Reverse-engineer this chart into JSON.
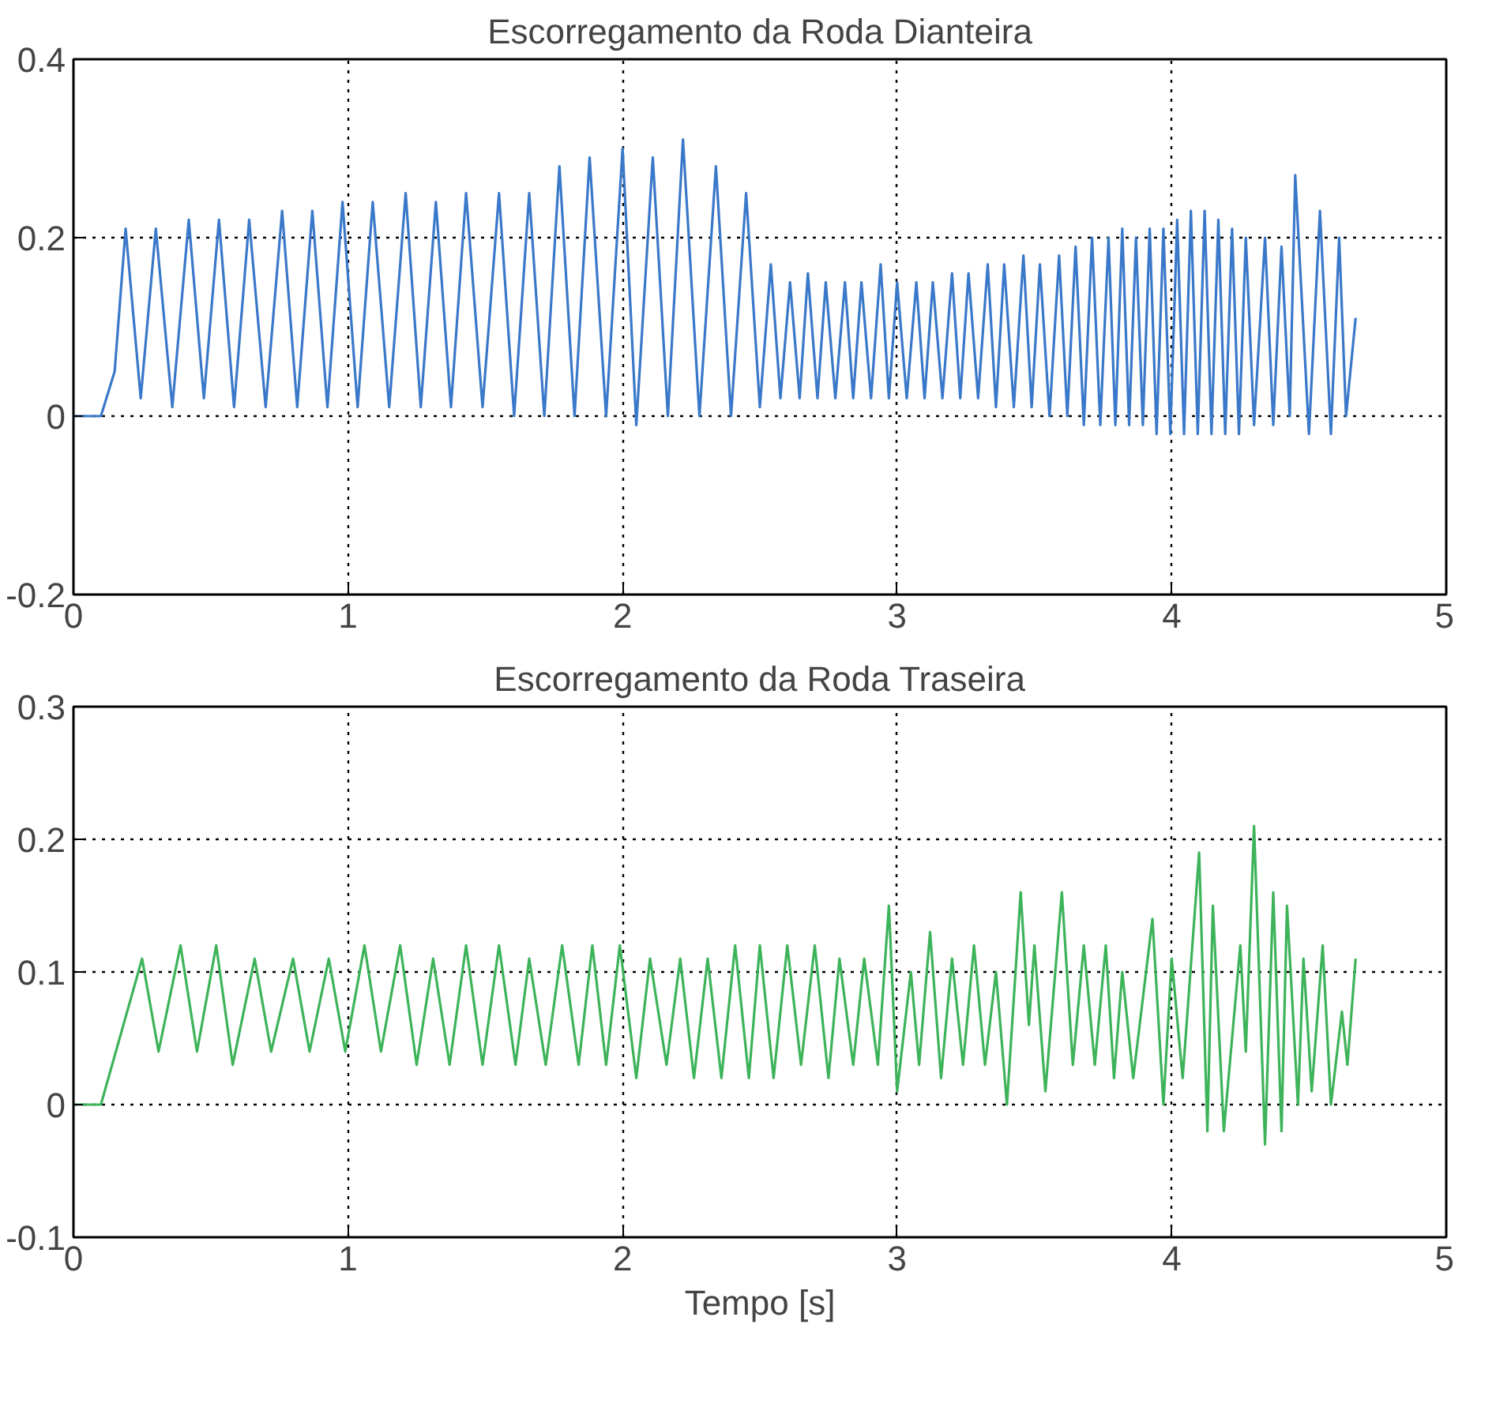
{
  "chart_data": [
    {
      "type": "line",
      "title": "Escorregamento da Roda Dianteira",
      "xlim": [
        0,
        5
      ],
      "xticks": [
        0,
        1,
        2,
        3,
        4,
        5
      ],
      "ylim": [
        -0.2,
        0.4
      ],
      "yticks": [
        -0.2,
        0,
        0.2,
        0.4
      ],
      "grid": true,
      "line_style": "solid",
      "series": [
        {
          "color": "#3a78c9",
          "x": [
            0,
            0.1,
            0.15,
            0.19,
            0.245,
            0.3,
            0.36,
            0.42,
            0.475,
            0.53,
            0.585,
            0.64,
            0.7,
            0.76,
            0.815,
            0.87,
            0.925,
            0.98,
            1.035,
            1.09,
            1.15,
            1.21,
            1.265,
            1.32,
            1.375,
            1.43,
            1.49,
            1.55,
            1.605,
            1.66,
            1.715,
            1.77,
            1.825,
            1.88,
            1.94,
            2.0,
            2.05,
            2.11,
            2.165,
            2.22,
            2.28,
            2.34,
            2.395,
            2.45,
            2.5,
            2.54,
            2.575,
            2.61,
            2.645,
            2.675,
            2.71,
            2.74,
            2.775,
            2.81,
            2.84,
            2.87,
            2.905,
            2.94,
            2.97,
            3.0,
            3.035,
            3.07,
            3.1,
            3.13,
            3.165,
            3.2,
            3.23,
            3.26,
            3.295,
            3.33,
            3.36,
            3.39,
            3.425,
            3.46,
            3.49,
            3.52,
            3.555,
            3.59,
            3.62,
            3.65,
            3.68,
            3.71,
            3.74,
            3.77,
            3.795,
            3.82,
            3.845,
            3.87,
            3.895,
            3.92,
            3.945,
            3.97,
            3.995,
            4.02,
            4.045,
            4.07,
            4.095,
            4.12,
            4.145,
            4.17,
            4.195,
            4.22,
            4.245,
            4.27,
            4.3,
            4.34,
            4.37,
            4.4,
            4.43,
            4.45,
            4.5,
            4.54,
            4.58,
            4.61,
            4.635,
            4.67
          ],
          "values": [
            0,
            0,
            0.05,
            0.21,
            0.02,
            0.21,
            0.01,
            0.22,
            0.02,
            0.22,
            0.01,
            0.22,
            0.01,
            0.23,
            0.01,
            0.23,
            0.01,
            0.24,
            0.01,
            0.24,
            0.01,
            0.25,
            0.01,
            0.24,
            0.01,
            0.25,
            0.01,
            0.25,
            0.0,
            0.25,
            0.0,
            0.28,
            0.0,
            0.29,
            0.0,
            0.3,
            -0.01,
            0.29,
            0.0,
            0.31,
            0.0,
            0.28,
            0.0,
            0.25,
            0.01,
            0.17,
            0.02,
            0.15,
            0.02,
            0.16,
            0.02,
            0.15,
            0.02,
            0.15,
            0.02,
            0.15,
            0.02,
            0.17,
            0.02,
            0.15,
            0.02,
            0.15,
            0.02,
            0.15,
            0.02,
            0.16,
            0.02,
            0.16,
            0.02,
            0.17,
            0.01,
            0.17,
            0.01,
            0.18,
            0.01,
            0.17,
            0.0,
            0.18,
            0.0,
            0.19,
            -0.01,
            0.2,
            -0.01,
            0.2,
            -0.01,
            0.21,
            -0.01,
            0.2,
            -0.01,
            0.21,
            -0.02,
            0.21,
            -0.02,
            0.22,
            -0.02,
            0.23,
            -0.02,
            0.23,
            -0.02,
            0.22,
            -0.02,
            0.21,
            -0.02,
            0.2,
            -0.01,
            0.2,
            -0.01,
            0.19,
            0.0,
            0.27,
            -0.02,
            0.23,
            -0.02,
            0.2,
            0.0,
            0.11
          ]
        }
      ]
    },
    {
      "type": "line",
      "title": "Escorregamento da Roda Traseira",
      "xlabel": "Tempo [s]",
      "xlim": [
        0,
        5
      ],
      "xticks": [
        0,
        1,
        2,
        3,
        4,
        5
      ],
      "ylim": [
        -0.1,
        0.3
      ],
      "yticks": [
        -0.1,
        0,
        0.1,
        0.2,
        0.3
      ],
      "grid": true,
      "line_style": "solid",
      "series": [
        {
          "color": "#3db35a",
          "x": [
            0,
            0.1,
            0.25,
            0.31,
            0.39,
            0.45,
            0.52,
            0.58,
            0.66,
            0.72,
            0.8,
            0.86,
            0.93,
            0.99,
            1.06,
            1.12,
            1.19,
            1.25,
            1.31,
            1.37,
            1.43,
            1.49,
            1.55,
            1.61,
            1.66,
            1.72,
            1.78,
            1.84,
            1.89,
            1.94,
            1.99,
            2.05,
            2.1,
            2.16,
            2.21,
            2.26,
            2.31,
            2.36,
            2.41,
            2.46,
            2.5,
            2.55,
            2.6,
            2.65,
            2.7,
            2.75,
            2.79,
            2.84,
            2.88,
            2.93,
            2.97,
            3.0,
            3.05,
            3.08,
            3.12,
            3.16,
            3.2,
            3.24,
            3.28,
            3.32,
            3.36,
            3.4,
            3.45,
            3.48,
            3.5,
            3.54,
            3.6,
            3.64,
            3.68,
            3.72,
            3.76,
            3.79,
            3.82,
            3.86,
            3.93,
            3.97,
            4.0,
            4.04,
            4.1,
            4.13,
            4.15,
            4.19,
            4.25,
            4.27,
            4.3,
            4.34,
            4.37,
            4.4,
            4.42,
            4.46,
            4.48,
            4.51,
            4.55,
            4.58,
            4.62,
            4.64,
            4.67
          ],
          "values": [
            0,
            0,
            0.11,
            0.04,
            0.12,
            0.04,
            0.12,
            0.03,
            0.11,
            0.04,
            0.11,
            0.04,
            0.11,
            0.04,
            0.12,
            0.04,
            0.12,
            0.03,
            0.11,
            0.03,
            0.12,
            0.03,
            0.12,
            0.03,
            0.11,
            0.03,
            0.12,
            0.03,
            0.12,
            0.03,
            0.12,
            0.02,
            0.11,
            0.03,
            0.11,
            0.02,
            0.11,
            0.02,
            0.12,
            0.02,
            0.12,
            0.02,
            0.12,
            0.03,
            0.12,
            0.02,
            0.11,
            0.03,
            0.11,
            0.03,
            0.15,
            0.01,
            0.1,
            0.03,
            0.13,
            0.02,
            0.11,
            0.03,
            0.12,
            0.03,
            0.1,
            0.0,
            0.16,
            0.06,
            0.12,
            0.01,
            0.16,
            0.03,
            0.12,
            0.03,
            0.12,
            0.02,
            0.1,
            0.02,
            0.14,
            0.0,
            0.11,
            0.02,
            0.19,
            -0.02,
            0.15,
            -0.02,
            0.12,
            0.04,
            0.21,
            -0.03,
            0.16,
            -0.02,
            0.15,
            0.0,
            0.11,
            0.01,
            0.12,
            0.0,
            0.07,
            0.03,
            0.11
          ]
        }
      ]
    }
  ]
}
